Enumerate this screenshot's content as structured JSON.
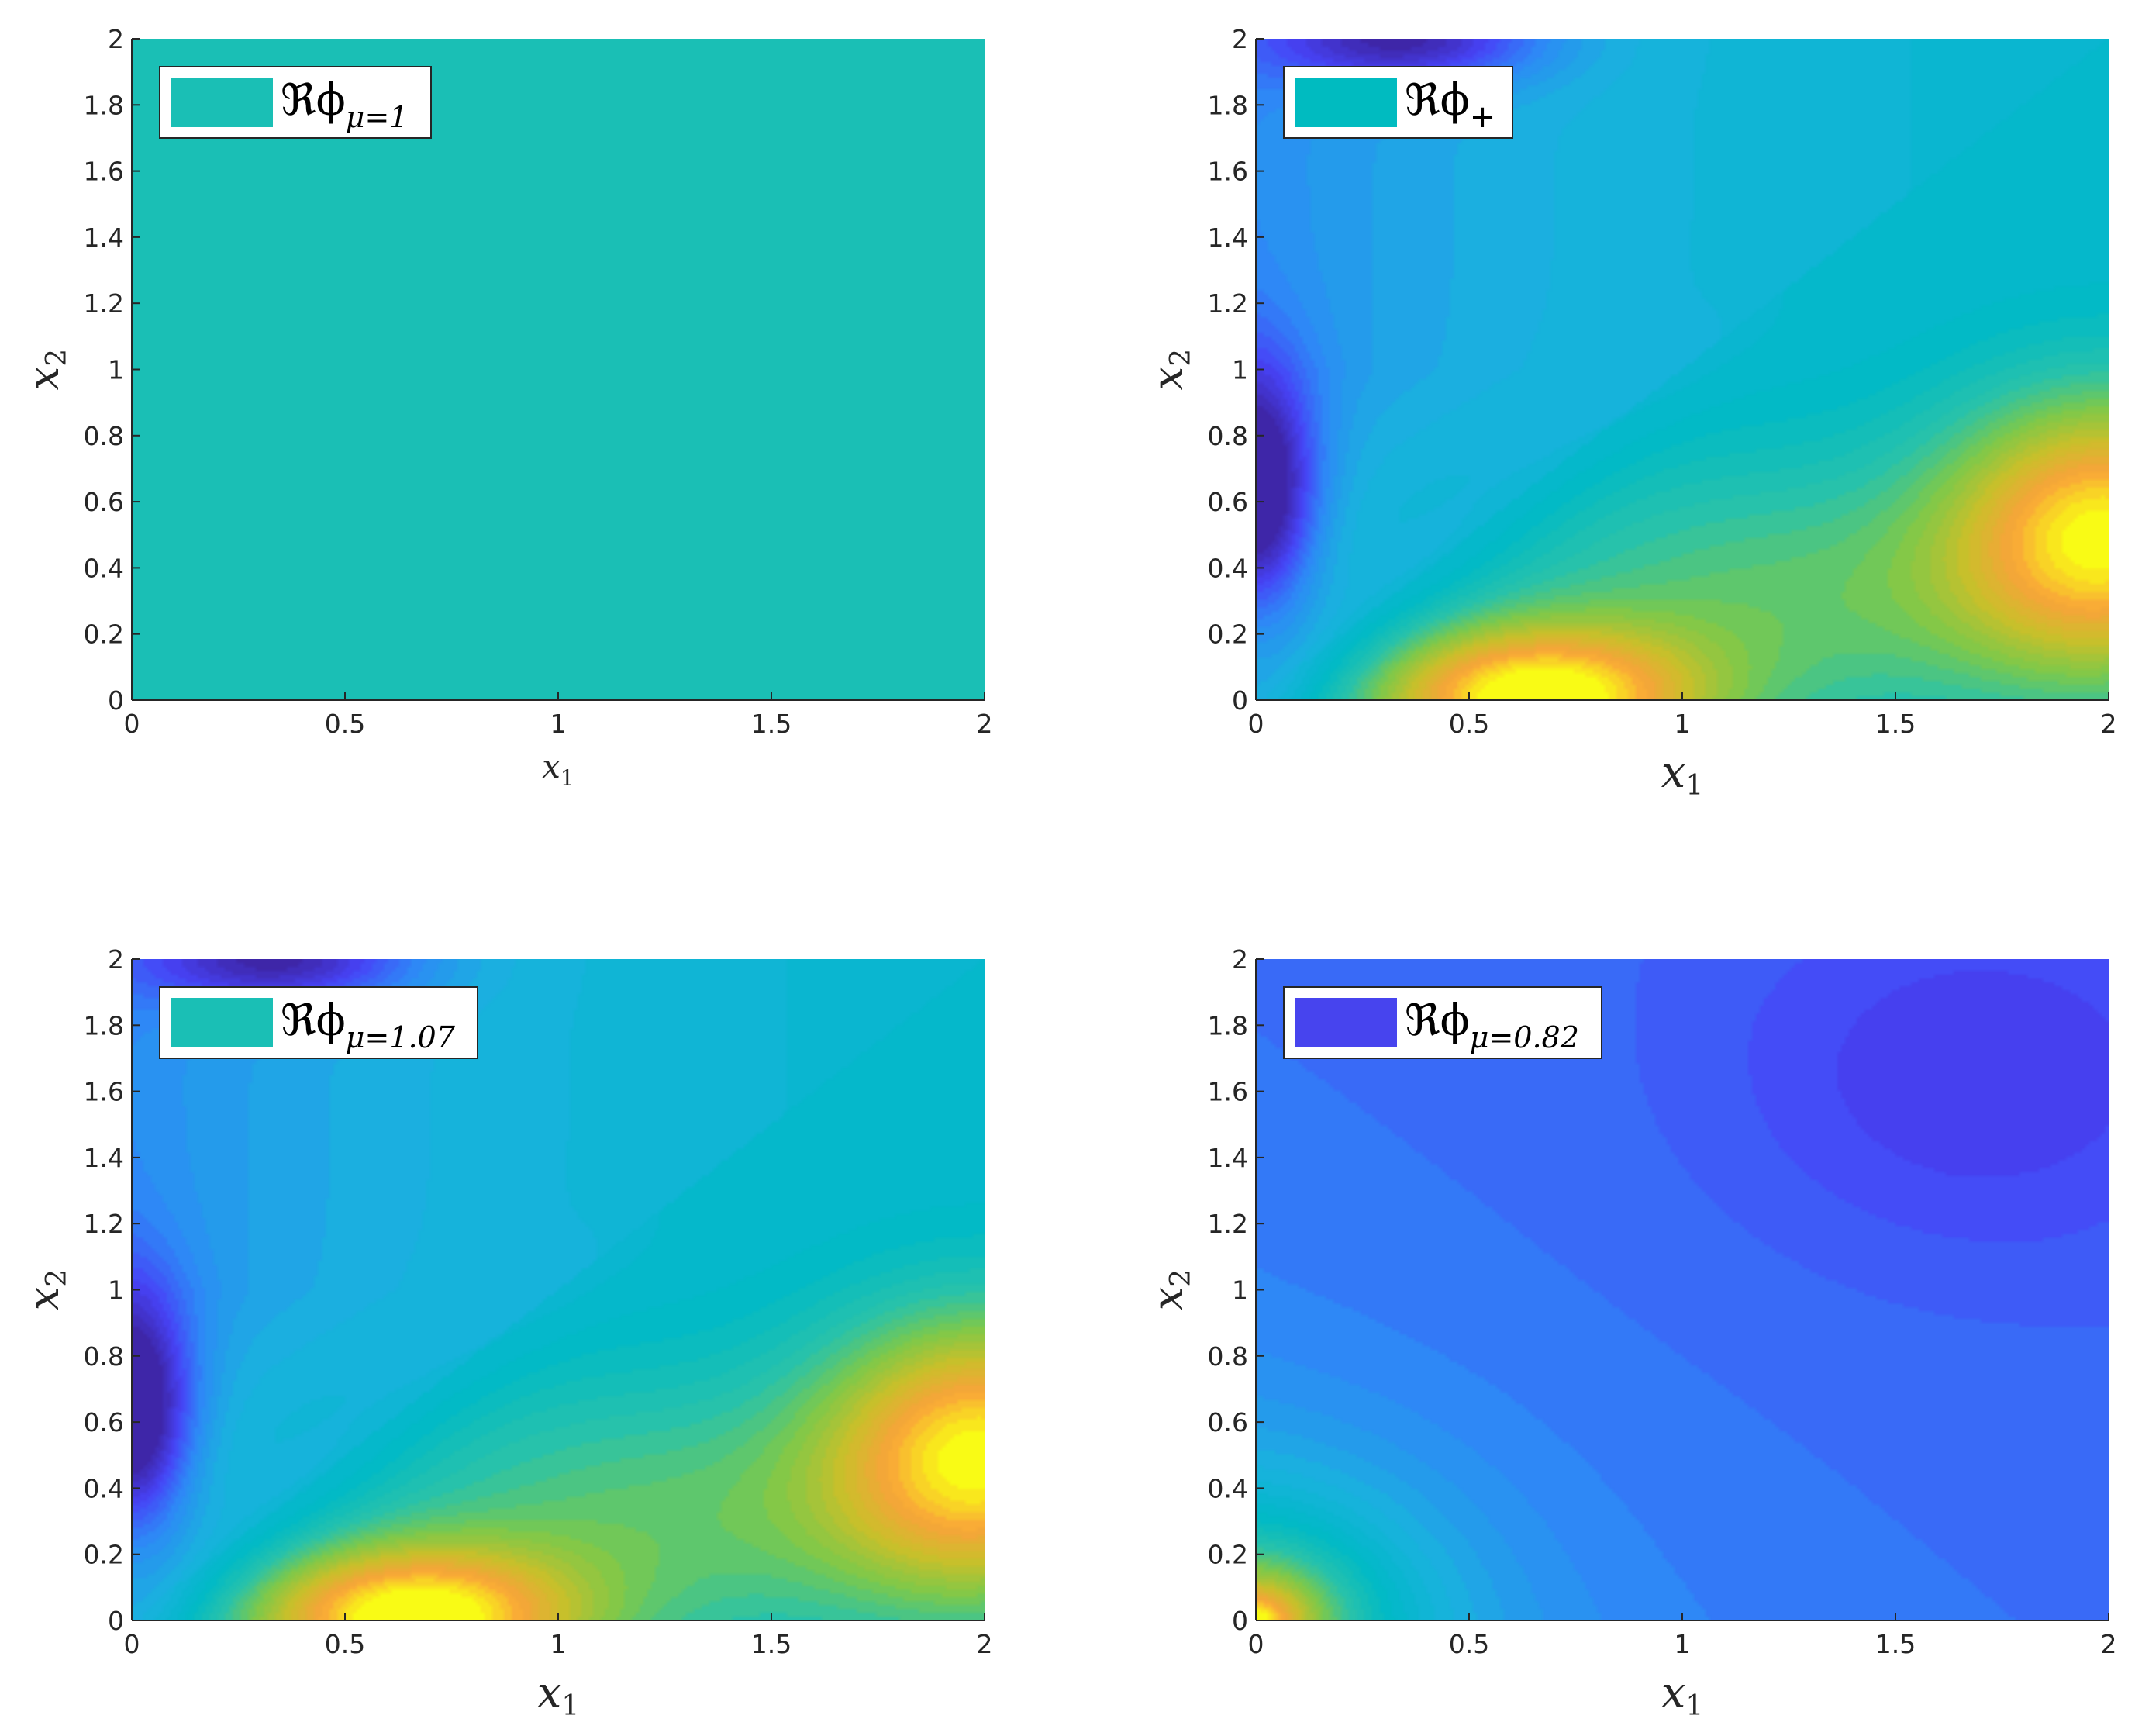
{
  "figure": {
    "colormap": [
      "#3e26a8",
      "#4743f7",
      "#2e87f7",
      "#1ab2de",
      "#00b9c7",
      "#29c3aa",
      "#7ec949",
      "#c9c02a",
      "#f9a33a",
      "#f9fb15"
    ]
  },
  "chart_data": [
    {
      "type": "heatmap",
      "title": "",
      "xlabel": "x",
      "xlabel_sub": "1",
      "ylabel": "x",
      "ylabel_sub": "2",
      "xlim": [
        0,
        2
      ],
      "ylim": [
        0,
        2
      ],
      "x_ticks": [
        "0",
        "0.5",
        "1",
        "1.5",
        "2"
      ],
      "y_ticks": [
        "0",
        "0.2",
        "0.4",
        "0.6",
        "0.8",
        "1",
        "1.2",
        "1.4",
        "1.6",
        "1.8",
        "2"
      ],
      "grid": false,
      "legend": {
        "placement": "top-left",
        "label_main": "ℜϕ",
        "label_sub": "μ=1",
        "swatch_color": "#1abfb5"
      },
      "field": "constant",
      "value_range": [
        1.0,
        1.0
      ],
      "z_min_at": {
        "x": 0,
        "y": 0
      },
      "z_max_at": {
        "x": 0,
        "y": 0
      },
      "xlabel_size": "small"
    },
    {
      "type": "heatmap",
      "title": "",
      "xlabel": "x",
      "xlabel_sub": "1",
      "ylabel": "x",
      "ylabel_sub": "2",
      "xlim": [
        0,
        2
      ],
      "ylim": [
        0,
        2
      ],
      "x_ticks": [
        "0",
        "0.5",
        "1",
        "1.5",
        "2"
      ],
      "y_ticks": [
        "0",
        "0.2",
        "0.4",
        "0.6",
        "0.8",
        "1",
        "1.2",
        "1.4",
        "1.6",
        "1.8",
        "2"
      ],
      "grid": false,
      "legend": {
        "placement": "top-left",
        "label_main": "ℜϕ",
        "label_sub": "+",
        "swatch_color": "#00bbc0"
      },
      "field": "pattern",
      "z_min_at": {
        "x": 0.0,
        "y": 0.6
      },
      "z_max_at": {
        "x": 2.0,
        "y": 0.4
      },
      "xlabel_size": "large"
    },
    {
      "type": "heatmap",
      "title": "",
      "xlabel": "x",
      "xlabel_sub": "1",
      "ylabel": "x",
      "ylabel_sub": "2",
      "xlim": [
        0,
        2
      ],
      "ylim": [
        0,
        2
      ],
      "x_ticks": [
        "0",
        "0.5",
        "1",
        "1.5",
        "2"
      ],
      "y_ticks": [
        "0",
        "0.2",
        "0.4",
        "0.6",
        "0.8",
        "1",
        "1.2",
        "1.4",
        "1.6",
        "1.8",
        "2"
      ],
      "grid": false,
      "legend": {
        "placement": "top-left",
        "label_main": "ℜϕ",
        "label_sub": "μ=1.07",
        "swatch_color": "#1abfb5"
      },
      "field": "pattern",
      "z_min_at": {
        "x": 0.0,
        "y": 0.6
      },
      "z_max_at": {
        "x": 2.0,
        "y": 0.4
      },
      "xlabel_size": "large"
    },
    {
      "type": "heatmap",
      "title": "",
      "xlabel": "x",
      "xlabel_sub": "1",
      "ylabel": "x",
      "ylabel_sub": "2",
      "xlim": [
        0,
        2
      ],
      "ylim": [
        0,
        2
      ],
      "x_ticks": [
        "0",
        "0.5",
        "1",
        "1.5",
        "2"
      ],
      "y_ticks": [
        "0",
        "0.2",
        "0.4",
        "0.6",
        "0.8",
        "1",
        "1.2",
        "1.4",
        "1.6",
        "1.8",
        "2"
      ],
      "grid": false,
      "legend": {
        "placement": "top-left",
        "label_main": "ℜϕ",
        "label_sub": "μ=0.82",
        "swatch_color": "#4744ee"
      },
      "field": "corner",
      "z_min_at": {
        "x": 1.7,
        "y": 1.65
      },
      "z_max_at": {
        "x": 0.0,
        "y": 0.0
      },
      "xlabel_size": "large"
    }
  ]
}
